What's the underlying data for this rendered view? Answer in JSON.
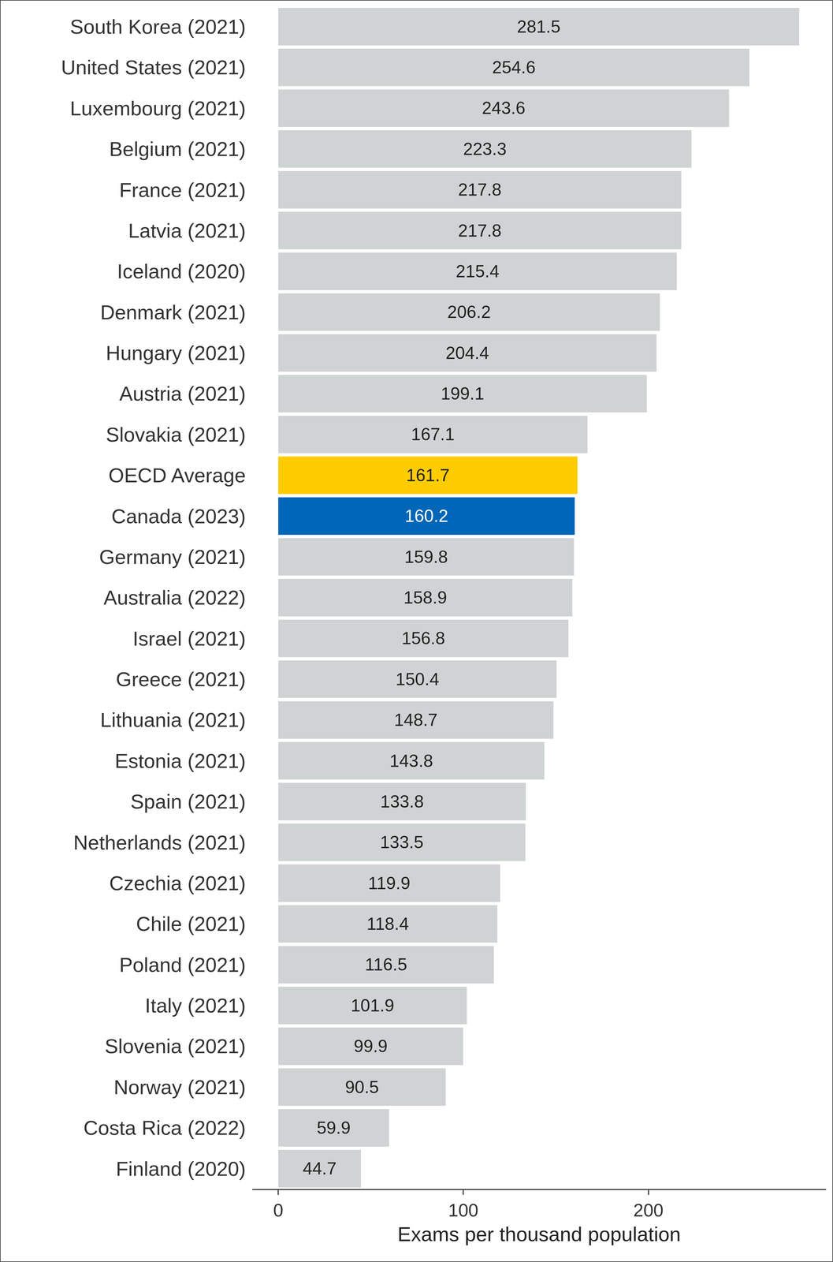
{
  "chart_data": {
    "type": "bar",
    "orientation": "horizontal",
    "categories": [
      "South Korea (2021)",
      "United States (2021)",
      "Luxembourg (2021)",
      "Belgium (2021)",
      "France (2021)",
      "Latvia (2021)",
      "Iceland (2020)",
      "Denmark (2021)",
      "Hungary (2021)",
      "Austria (2021)",
      "Slovakia (2021)",
      "OECD Average",
      "Canada (2023)",
      "Germany (2021)",
      "Australia (2022)",
      "Israel (2021)",
      "Greece (2021)",
      "Lithuania (2021)",
      "Estonia (2021)",
      "Spain (2021)",
      "Netherlands (2021)",
      "Czechia (2021)",
      "Chile (2021)",
      "Poland (2021)",
      "Italy (2021)",
      "Slovenia (2021)",
      "Norway (2021)",
      "Costa Rica (2022)",
      "Finland (2020)"
    ],
    "values": [
      281.5,
      254.6,
      243.6,
      223.3,
      217.8,
      217.8,
      215.4,
      206.2,
      204.4,
      199.1,
      167.1,
      161.7,
      160.2,
      159.8,
      158.9,
      156.8,
      150.4,
      148.7,
      143.8,
      133.8,
      133.5,
      119.9,
      118.4,
      116.5,
      101.9,
      99.9,
      90.5,
      59.9,
      44.7
    ],
    "colors": [
      "#d0d3d4",
      "#d0d3d4",
      "#d0d3d4",
      "#d0d3d4",
      "#d0d3d4",
      "#d0d3d4",
      "#d0d3d4",
      "#d0d3d4",
      "#d0d3d4",
      "#d0d3d4",
      "#d0d3d4",
      "#ffcc00",
      "#0066b8",
      "#d0d3d4",
      "#d0d3d4",
      "#d0d3d4",
      "#d0d3d4",
      "#d0d3d4",
      "#d0d3d4",
      "#d0d3d4",
      "#d0d3d4",
      "#d0d3d4",
      "#d0d3d4",
      "#d0d3d4",
      "#d0d3d4",
      "#d0d3d4",
      "#d0d3d4",
      "#d0d3d4",
      "#d0d3d4"
    ],
    "xlabel": "Exams per thousand population",
    "xlim": [
      -14,
      296
    ],
    "xticks": [
      0,
      100,
      200
    ],
    "grid": false,
    "data_labels": true
  }
}
